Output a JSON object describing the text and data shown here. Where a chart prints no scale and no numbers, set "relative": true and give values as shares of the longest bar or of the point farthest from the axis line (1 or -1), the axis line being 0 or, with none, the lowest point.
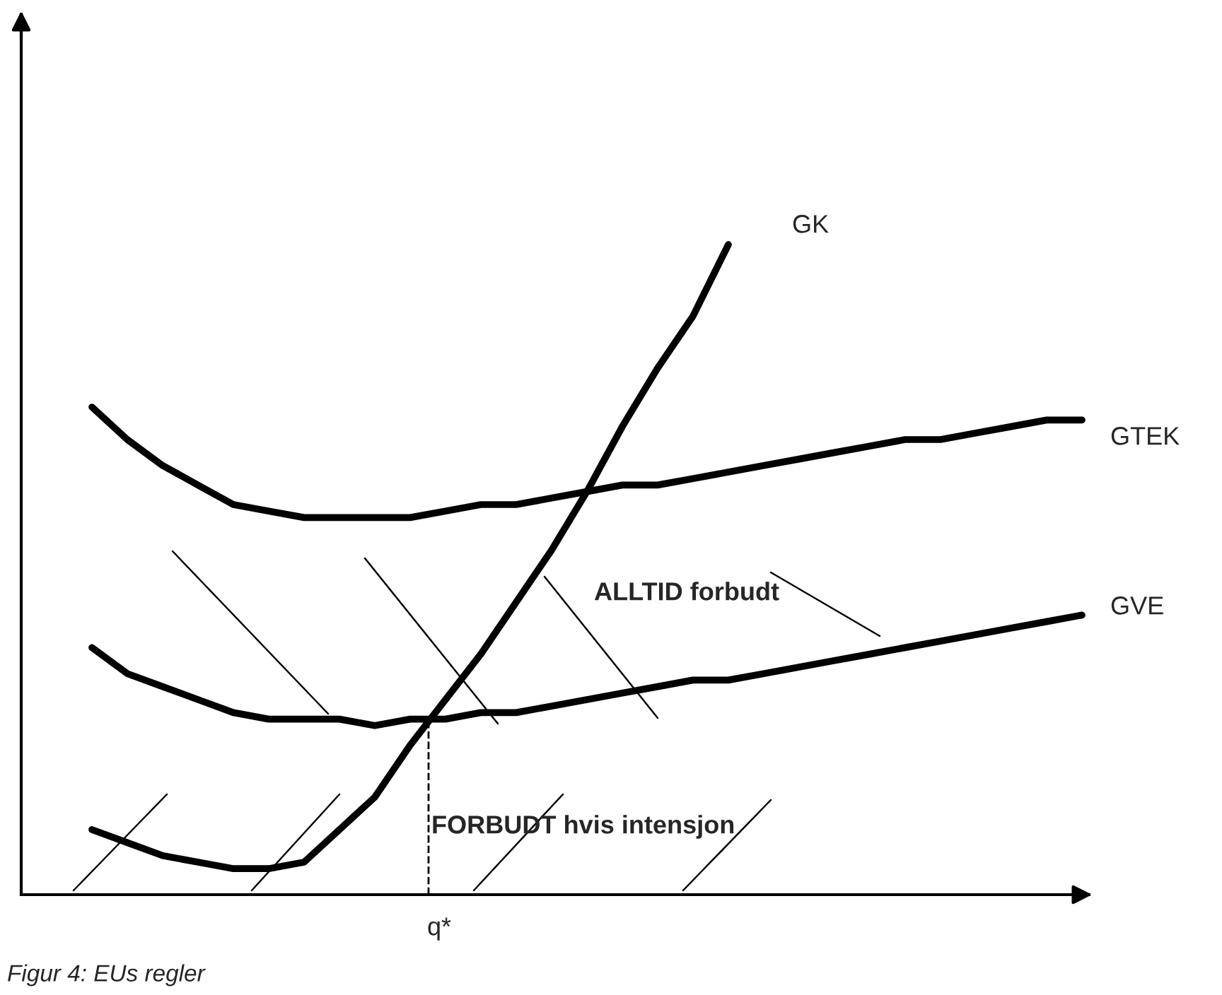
{
  "chart_data": {
    "type": "line",
    "relative": true,
    "legend": false,
    "line_style": "solid",
    "marker": "none",
    "categories": [
      null,
      null,
      null,
      null,
      null,
      null,
      null,
      null,
      null,
      null,
      null,
      null,
      null,
      null,
      null,
      null,
      null,
      null,
      null,
      null,
      null,
      null,
      null,
      null,
      null,
      null,
      null,
      null,
      null
    ],
    "series": [
      {
        "name": "GK",
        "color": "#000000",
        "values": [
          0.1,
          0.08,
          0.06,
          0.05,
          0.04,
          0.04,
          0.05,
          0.1,
          0.15,
          0.23,
          0.3,
          0.37,
          0.45,
          0.53,
          0.62,
          0.72,
          0.81,
          0.89,
          1.0,
          null,
          null,
          null,
          null,
          null,
          null,
          null,
          null,
          null,
          null
        ]
      },
      {
        "name": "GTEK",
        "color": "#000000",
        "values": [
          0.75,
          0.7,
          0.66,
          0.63,
          0.6,
          0.59,
          0.58,
          0.58,
          0.58,
          0.58,
          0.59,
          0.6,
          0.6,
          0.61,
          0.62,
          0.63,
          0.63,
          0.64,
          0.65,
          0.66,
          0.67,
          0.68,
          0.69,
          0.7,
          0.7,
          0.71,
          0.72,
          0.73,
          0.73
        ]
      },
      {
        "name": "GVE",
        "color": "#000000",
        "values": [
          0.38,
          0.34,
          0.32,
          0.3,
          0.28,
          0.27,
          0.27,
          0.27,
          0.26,
          0.27,
          0.27,
          0.28,
          0.28,
          0.29,
          0.3,
          0.31,
          0.32,
          0.33,
          0.33,
          0.34,
          0.35,
          0.36,
          0.37,
          0.38,
          0.39,
          0.4,
          0.41,
          0.42,
          0.43
        ]
      }
    ],
    "annotations": [
      "ALLTID forbudt",
      "FORBUDT hvis intensjon",
      "q*",
      "Figur 4: EUs regler"
    ]
  }
}
